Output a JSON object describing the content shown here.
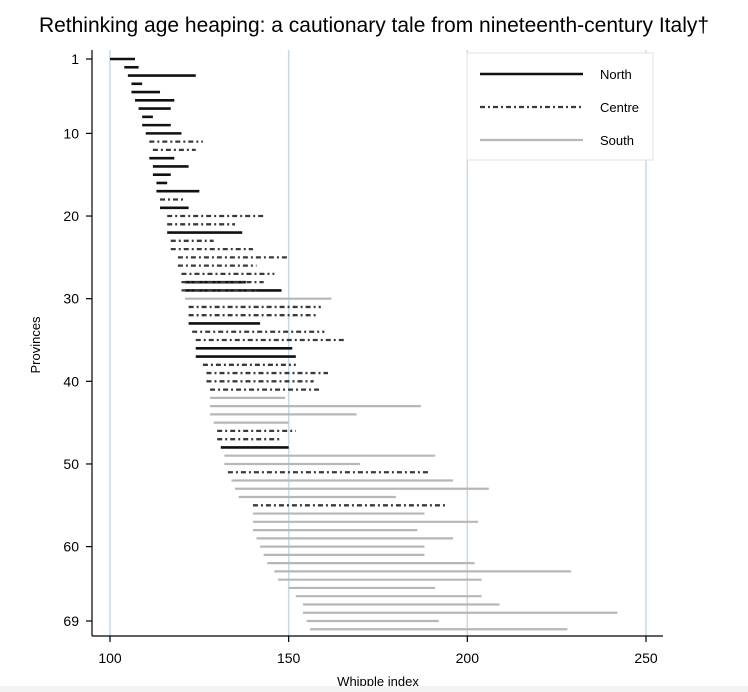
{
  "chart_data": {
    "type": "range",
    "title": "Rethinking age heaping: a cautionary tale from nineteenth-century Italy†",
    "xlabel": "Whipple index",
    "ylabel": "Provinces",
    "xlim": [
      95,
      255
    ],
    "ylim": [
      0,
      70
    ],
    "xticks": [
      100,
      150,
      200,
      250
    ],
    "yticks": [
      1,
      10,
      20,
      30,
      40,
      50,
      60,
      69
    ],
    "ref_lines": [
      100,
      150,
      200,
      250
    ],
    "legend": {
      "position": "top-right",
      "entries": [
        {
          "label": "North",
          "style": "solid-black"
        },
        {
          "label": "Centre",
          "style": "dash-dot"
        },
        {
          "label": "South",
          "style": "solid-grey"
        }
      ]
    },
    "series": [
      {
        "name": "North",
        "style": "solid-black",
        "ranges": [
          {
            "province": 1,
            "start": 100,
            "end": 107
          },
          {
            "province": 2,
            "start": 104,
            "end": 108
          },
          {
            "province": 3,
            "start": 105,
            "end": 124
          },
          {
            "province": 4,
            "start": 106,
            "end": 109
          },
          {
            "province": 5,
            "start": 106,
            "end": 114
          },
          {
            "province": 6,
            "start": 107,
            "end": 118
          },
          {
            "province": 7,
            "start": 108,
            "end": 117
          },
          {
            "province": 8,
            "start": 109,
            "end": 112
          },
          {
            "province": 9,
            "start": 109,
            "end": 117
          },
          {
            "province": 10,
            "start": 110,
            "end": 120
          },
          {
            "province": 13,
            "start": 111,
            "end": 118
          },
          {
            "province": 14,
            "start": 112,
            "end": 122
          },
          {
            "province": 15,
            "start": 112,
            "end": 117
          },
          {
            "province": 16,
            "start": 113,
            "end": 116
          },
          {
            "province": 17,
            "start": 113,
            "end": 125
          },
          {
            "province": 19,
            "start": 114,
            "end": 122
          },
          {
            "province": 22,
            "start": 116,
            "end": 137
          },
          {
            "province": 28,
            "start": 121,
            "end": 138
          },
          {
            "province": 29,
            "start": 121,
            "end": 148
          },
          {
            "province": 33,
            "start": 122,
            "end": 142
          },
          {
            "province": 36,
            "start": 124,
            "end": 151
          },
          {
            "province": 37,
            "start": 124,
            "end": 152
          },
          {
            "province": 48,
            "start": 131,
            "end": 150
          }
        ]
      },
      {
        "name": "Centre",
        "style": "dash-dot",
        "ranges": [
          {
            "province": 11,
            "start": 111,
            "end": 126
          },
          {
            "province": 12,
            "start": 112,
            "end": 124
          },
          {
            "province": 18,
            "start": 114,
            "end": 121
          },
          {
            "province": 20,
            "start": 116,
            "end": 143
          },
          {
            "province": 21,
            "start": 116,
            "end": 135
          },
          {
            "province": 23,
            "start": 117,
            "end": 129
          },
          {
            "province": 24,
            "start": 117,
            "end": 140
          },
          {
            "province": 25,
            "start": 119,
            "end": 150
          },
          {
            "province": 26,
            "start": 119,
            "end": 141
          },
          {
            "province": 27,
            "start": 120,
            "end": 146
          },
          {
            "province": 28,
            "start": 120,
            "end": 143
          },
          {
            "province": 29,
            "start": 120,
            "end": 141
          },
          {
            "province": 31,
            "start": 122,
            "end": 159
          },
          {
            "province": 32,
            "start": 122,
            "end": 158
          },
          {
            "province": 34,
            "start": 123,
            "end": 160
          },
          {
            "province": 35,
            "start": 124,
            "end": 166
          },
          {
            "province": 38,
            "start": 126,
            "end": 152
          },
          {
            "province": 39,
            "start": 127,
            "end": 161
          },
          {
            "province": 40,
            "start": 127,
            "end": 157
          },
          {
            "province": 41,
            "start": 128,
            "end": 159
          },
          {
            "province": 46,
            "start": 130,
            "end": 152
          },
          {
            "province": 47,
            "start": 130,
            "end": 148
          },
          {
            "province": 51,
            "start": 133,
            "end": 189
          },
          {
            "province": 55,
            "start": 140,
            "end": 194
          }
        ]
      },
      {
        "name": "South",
        "style": "solid-grey",
        "ranges": [
          {
            "province": 30,
            "start": 121,
            "end": 162
          },
          {
            "province": 42,
            "start": 128,
            "end": 149
          },
          {
            "province": 43,
            "start": 128,
            "end": 187
          },
          {
            "province": 44,
            "start": 128,
            "end": 169
          },
          {
            "province": 45,
            "start": 129,
            "end": 150
          },
          {
            "province": 49,
            "start": 132,
            "end": 191
          },
          {
            "province": 50,
            "start": 132,
            "end": 170
          },
          {
            "province": 52,
            "start": 134,
            "end": 196
          },
          {
            "province": 53,
            "start": 135,
            "end": 206
          },
          {
            "province": 54,
            "start": 136,
            "end": 180
          },
          {
            "province": 56,
            "start": 140,
            "end": 188
          },
          {
            "province": 57,
            "start": 140,
            "end": 203
          },
          {
            "province": 58,
            "start": 140,
            "end": 186
          },
          {
            "province": 59,
            "start": 141,
            "end": 196
          },
          {
            "province": 60,
            "start": 142,
            "end": 188
          },
          {
            "province": 61,
            "start": 143,
            "end": 188
          },
          {
            "province": 62,
            "start": 144,
            "end": 202
          },
          {
            "province": 63,
            "start": 146,
            "end": 229
          },
          {
            "province": 64,
            "start": 147,
            "end": 204
          },
          {
            "province": 65,
            "start": 150,
            "end": 191
          },
          {
            "province": 66,
            "start": 152,
            "end": 204
          },
          {
            "province": 67,
            "start": 154,
            "end": 209
          },
          {
            "province": 68,
            "start": 154,
            "end": 242
          },
          {
            "province": 69,
            "start": 155,
            "end": 192
          },
          {
            "province": 70,
            "start": 156,
            "end": 228
          }
        ]
      }
    ]
  }
}
